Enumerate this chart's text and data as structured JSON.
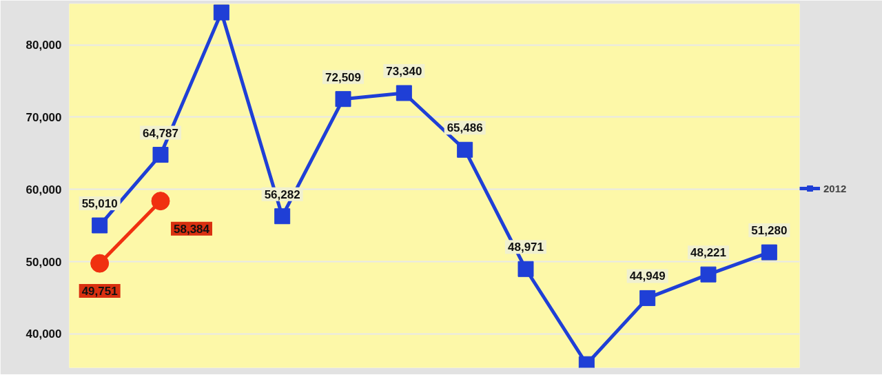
{
  "chart_data": {
    "type": "line",
    "categories": [
      null,
      null,
      null,
      null,
      null,
      null,
      null,
      null,
      null,
      null,
      null,
      null
    ],
    "series": [
      {
        "name": "2012",
        "color": "#1f3fd6",
        "marker": "square",
        "values": [
          55010,
          64787,
          84500,
          56282,
          72509,
          73340,
          65486,
          48971,
          35800,
          44949,
          48221,
          51280
        ],
        "value_labels": [
          "55,010",
          "64,787",
          null,
          "56,282",
          "72,509",
          "73,340",
          "65,486",
          "48,971",
          null,
          "44,949",
          "48,221",
          "51,280"
        ]
      },
      {
        "color": "#f03010",
        "marker": "circle",
        "values": [
          49751,
          58384,
          null,
          null,
          null,
          null,
          null,
          null,
          null,
          null,
          null,
          null
        ],
        "value_labels": [
          "49,751",
          "58,384",
          null,
          null,
          null,
          null,
          null,
          null,
          null,
          null,
          null,
          null
        ]
      }
    ],
    "ylim": [
      35300,
      85700
    ],
    "yticks": [
      {
        "value": 40000,
        "label": "40,000"
      },
      {
        "value": 50000,
        "label": "50,000"
      },
      {
        "value": 60000,
        "label": "60,000"
      },
      {
        "value": 70000,
        "label": "70,000"
      },
      {
        "value": 80000,
        "label": "80,000"
      }
    ],
    "grid": "y",
    "legend": "right",
    "tick_labels": "y"
  }
}
